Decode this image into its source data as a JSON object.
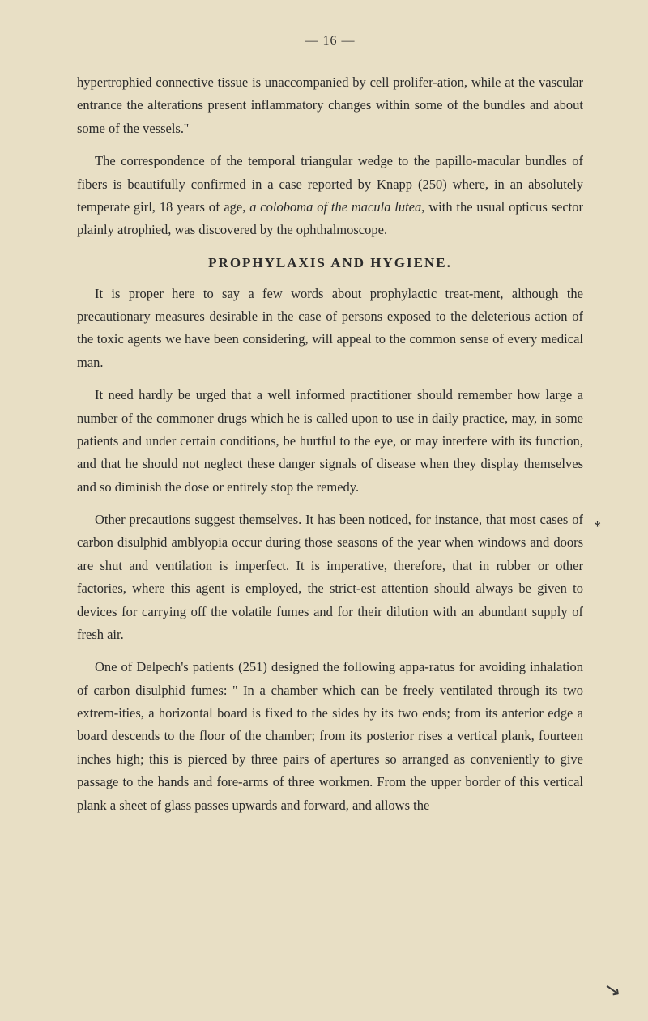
{
  "page": {
    "number": "— 16 —",
    "para1": "hypertrophied connective tissue is unaccompanied by cell prolifer-ation, while at the vascular entrance the alterations present inflammatory changes within some of the bundles and about some of the vessels.''",
    "para2_pre": "The correspondence of the temporal triangular wedge to the papillo-macular bundles of fibers is beautifully confirmed in a case reported by Knapp (250) where, in an absolutely temperate girl, 18 years of age, ",
    "para2_italic": "a coloboma of the macula lutea",
    "para2_post": ", with the usual opticus sector plainly atrophied, was discovered by the ophthalmoscope.",
    "heading": "PROPHYLAXIS AND HYGIENE.",
    "para3": "It is proper here to say a few words about prophylactic treat-ment, although the precautionary measures desirable in the case of persons exposed to the deleterious action of the toxic agents we have been considering, will appeal to the common sense of every medical man.",
    "para4": "It need hardly be urged that a well informed practitioner should remember how large a number of the commoner drugs which he is called upon to use in daily practice, may, in some patients and under certain conditions, be hurtful to the eye, or may interfere with its function, and that he should not neglect these danger signals of disease when they display themselves and so diminish the dose or entirely stop the remedy.",
    "para5": "Other precautions suggest themselves. It has been noticed, for instance, that most cases of carbon disulphid amblyopia occur during those seasons of the year when windows and doors are shut and ventilation is imperfect. It is imperative, therefore, that in rubber or other factories, where this agent is employed, the strict-est attention should always be given to devices for carrying off the volatile fumes and for their dilution with an abundant supply of fresh air.",
    "para6": "One of Delpech's patients (251) designed the following appa-ratus for avoiding inhalation of carbon disulphid fumes: '' In a chamber which can be freely ventilated through its two extrem-ities, a horizontal board is fixed to the sides by its two ends; from its anterior edge a board descends to the floor of the chamber; from its posterior rises a vertical plank, fourteen inches high; this is pierced by three pairs of apertures so arranged as conveniently to give passage to the hands and fore-arms of three workmen. From the upper border of this vertical plank a sheet of glass passes upwards and forward, and allows the",
    "asterisk": "*",
    "corner": "↘"
  },
  "colors": {
    "background": "#e8dfc5",
    "text": "#2a2a2a"
  },
  "typography": {
    "body_fontsize": 16.5,
    "body_lineheight": 1.72,
    "heading_fontsize": 17,
    "heading_letterspacing": 2,
    "pagenum_fontsize": 16
  }
}
